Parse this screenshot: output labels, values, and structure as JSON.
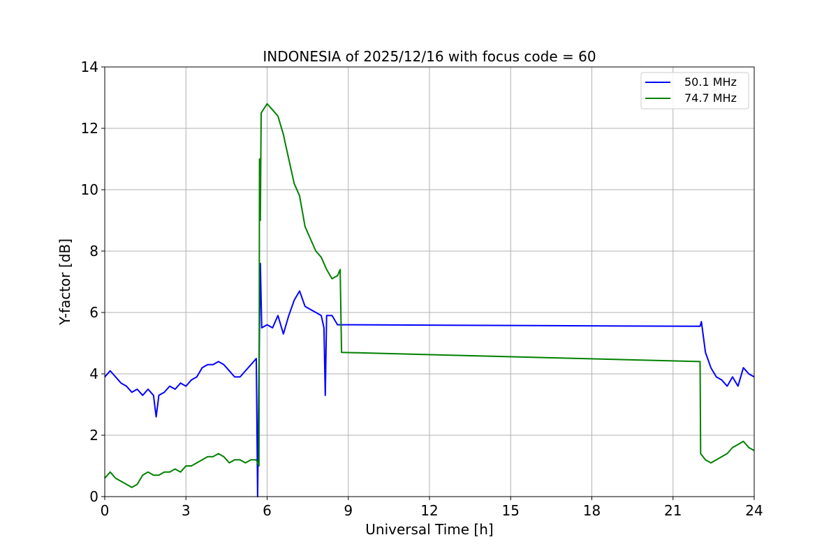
{
  "chart_data": {
    "type": "line",
    "title": "INDONESIA of 2025/12/16 with focus code = 60",
    "xlabel": "Universal Time [h]",
    "ylabel": "Y-factor [dB]",
    "xlim": [
      0,
      24
    ],
    "ylim": [
      0,
      14
    ],
    "xticks": [
      0,
      3,
      6,
      9,
      12,
      15,
      18,
      21,
      24
    ],
    "yticks": [
      0,
      2,
      4,
      6,
      8,
      10,
      12,
      14
    ],
    "grid": true,
    "legend_position": "top-right",
    "series": [
      {
        "name": "50.1 MHz",
        "color": "#0000ff",
        "points": [
          [
            0.0,
            3.9
          ],
          [
            0.2,
            4.1
          ],
          [
            0.4,
            3.9
          ],
          [
            0.6,
            3.7
          ],
          [
            0.8,
            3.6
          ],
          [
            1.0,
            3.4
          ],
          [
            1.2,
            3.5
          ],
          [
            1.4,
            3.3
          ],
          [
            1.6,
            3.5
          ],
          [
            1.8,
            3.3
          ],
          [
            1.9,
            2.6
          ],
          [
            2.0,
            3.3
          ],
          [
            2.2,
            3.4
          ],
          [
            2.4,
            3.6
          ],
          [
            2.6,
            3.5
          ],
          [
            2.8,
            3.7
          ],
          [
            3.0,
            3.6
          ],
          [
            3.2,
            3.8
          ],
          [
            3.4,
            3.9
          ],
          [
            3.6,
            4.2
          ],
          [
            3.8,
            4.3
          ],
          [
            4.0,
            4.3
          ],
          [
            4.2,
            4.4
          ],
          [
            4.4,
            4.3
          ],
          [
            4.6,
            4.1
          ],
          [
            4.8,
            3.9
          ],
          [
            5.0,
            3.9
          ],
          [
            5.2,
            4.1
          ],
          [
            5.4,
            4.3
          ],
          [
            5.6,
            4.5
          ],
          [
            5.65,
            0.0
          ],
          [
            5.7,
            4.2
          ],
          [
            5.75,
            7.6
          ],
          [
            5.8,
            5.5
          ],
          [
            6.0,
            5.6
          ],
          [
            6.2,
            5.5
          ],
          [
            6.4,
            5.9
          ],
          [
            6.6,
            5.3
          ],
          [
            6.8,
            5.9
          ],
          [
            7.0,
            6.4
          ],
          [
            7.2,
            6.7
          ],
          [
            7.4,
            6.2
          ],
          [
            7.6,
            6.1
          ],
          [
            7.8,
            6.0
          ],
          [
            8.0,
            5.9
          ],
          [
            8.1,
            5.5
          ],
          [
            8.15,
            3.3
          ],
          [
            8.2,
            5.9
          ],
          [
            8.4,
            5.9
          ],
          [
            8.6,
            5.6
          ],
          [
            8.75,
            5.6
          ],
          [
            22.0,
            5.55
          ],
          [
            22.05,
            5.7
          ],
          [
            22.2,
            4.7
          ],
          [
            22.4,
            4.2
          ],
          [
            22.6,
            3.9
          ],
          [
            22.8,
            3.8
          ],
          [
            23.0,
            3.6
          ],
          [
            23.2,
            3.9
          ],
          [
            23.4,
            3.6
          ],
          [
            23.6,
            4.2
          ],
          [
            23.8,
            4.0
          ],
          [
            24.0,
            3.9
          ]
        ]
      },
      {
        "name": "74.7 MHz",
        "color": "#008000",
        "points": [
          [
            0.0,
            0.6
          ],
          [
            0.2,
            0.8
          ],
          [
            0.4,
            0.6
          ],
          [
            0.6,
            0.5
          ],
          [
            0.8,
            0.4
          ],
          [
            1.0,
            0.3
          ],
          [
            1.2,
            0.4
          ],
          [
            1.4,
            0.7
          ],
          [
            1.6,
            0.8
          ],
          [
            1.8,
            0.7
          ],
          [
            2.0,
            0.7
          ],
          [
            2.2,
            0.8
          ],
          [
            2.4,
            0.8
          ],
          [
            2.6,
            0.9
          ],
          [
            2.8,
            0.8
          ],
          [
            3.0,
            1.0
          ],
          [
            3.2,
            1.0
          ],
          [
            3.4,
            1.1
          ],
          [
            3.6,
            1.2
          ],
          [
            3.8,
            1.3
          ],
          [
            4.0,
            1.3
          ],
          [
            4.2,
            1.4
          ],
          [
            4.4,
            1.3
          ],
          [
            4.6,
            1.1
          ],
          [
            4.8,
            1.2
          ],
          [
            5.0,
            1.2
          ],
          [
            5.2,
            1.1
          ],
          [
            5.4,
            1.2
          ],
          [
            5.6,
            1.2
          ],
          [
            5.7,
            1.0
          ],
          [
            5.72,
            11.0
          ],
          [
            5.75,
            9.0
          ],
          [
            5.78,
            12.5
          ],
          [
            6.0,
            12.8
          ],
          [
            6.2,
            12.6
          ],
          [
            6.4,
            12.4
          ],
          [
            6.6,
            11.8
          ],
          [
            6.8,
            11.0
          ],
          [
            7.0,
            10.2
          ],
          [
            7.2,
            9.8
          ],
          [
            7.4,
            8.8
          ],
          [
            7.6,
            8.4
          ],
          [
            7.8,
            8.0
          ],
          [
            8.0,
            7.8
          ],
          [
            8.2,
            7.4
          ],
          [
            8.4,
            7.1
          ],
          [
            8.6,
            7.2
          ],
          [
            8.7,
            7.4
          ],
          [
            8.75,
            4.7
          ],
          [
            22.0,
            4.4
          ],
          [
            22.02,
            1.4
          ],
          [
            22.2,
            1.2
          ],
          [
            22.4,
            1.1
          ],
          [
            22.6,
            1.2
          ],
          [
            22.8,
            1.3
          ],
          [
            23.0,
            1.4
          ],
          [
            23.2,
            1.6
          ],
          [
            23.4,
            1.7
          ],
          [
            23.6,
            1.8
          ],
          [
            23.8,
            1.6
          ],
          [
            24.0,
            1.5
          ]
        ]
      }
    ]
  }
}
